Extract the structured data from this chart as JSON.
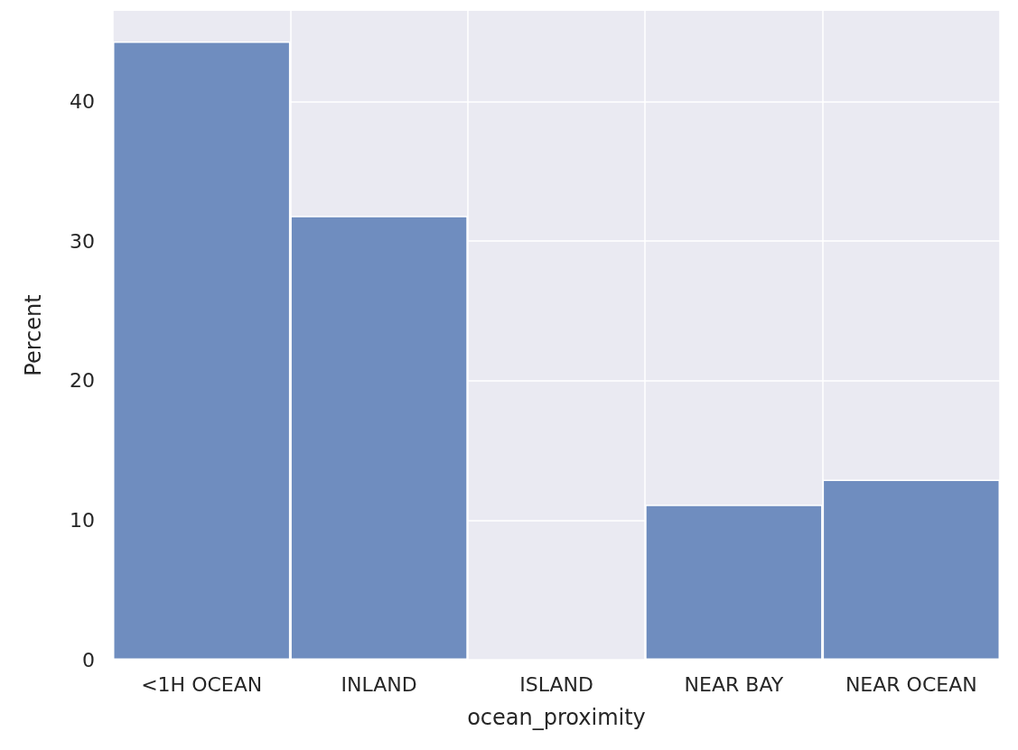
{
  "chart_data": {
    "type": "bar",
    "xlabel": "ocean_proximity",
    "ylabel": "Percent",
    "categories": [
      "<1H OCEAN",
      "INLAND",
      "ISLAND",
      "NEAR BAY",
      "NEAR OCEAN"
    ],
    "values": [
      44.3,
      31.8,
      0,
      11.1,
      12.9
    ],
    "color": "#6f8dbf",
    "ylim": [
      0,
      46.5
    ],
    "yticks": [
      0,
      10,
      20,
      30,
      40
    ],
    "grid": true
  }
}
